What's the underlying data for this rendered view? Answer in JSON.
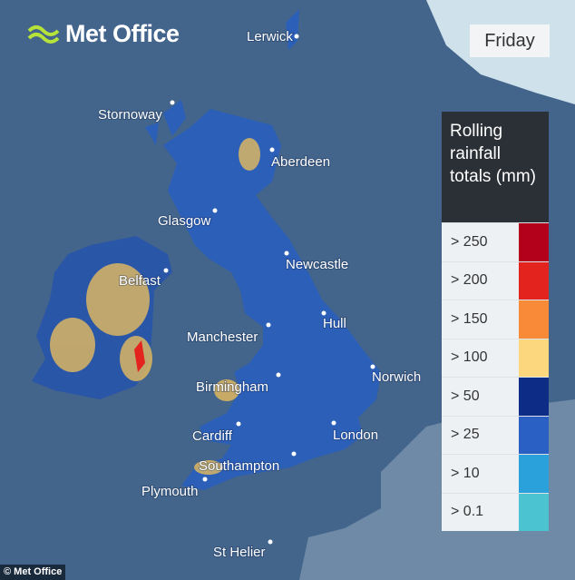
{
  "logo": "Met Office",
  "day": "Friday",
  "legend": {
    "title": "Rolling rainfall totals (mm)",
    "items": [
      {
        "label": "> 250",
        "color": "#b3001b"
      },
      {
        "label": "> 200",
        "color": "#e3231d"
      },
      {
        "label": "> 150",
        "color": "#f98a37"
      },
      {
        "label": "> 100",
        "color": "#fdd77e"
      },
      {
        "label": "> 50",
        "color": "#0d2c86"
      },
      {
        "label": "> 25",
        "color": "#2a60c3"
      },
      {
        "label": "> 10",
        "color": "#2aa1db"
      },
      {
        "label": "> 0.1",
        "color": "#4cc3d0"
      }
    ]
  },
  "cities": [
    "Lerwick",
    "Stornoway",
    "Aberdeen",
    "Glasgow",
    "Belfast",
    "Newcastle",
    "Manchester",
    "Hull",
    "Norwich",
    "Birmingham",
    "Cardiff",
    "London",
    "Southampton",
    "Plymouth",
    "St Helier"
  ],
  "credit": "© Met Office"
}
